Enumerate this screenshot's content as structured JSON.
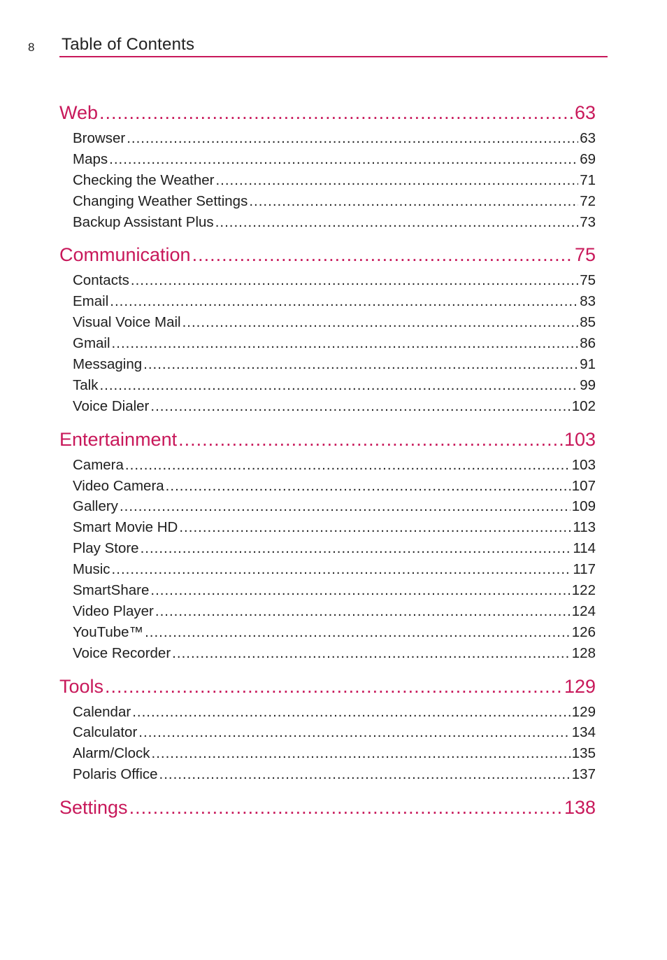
{
  "header": {
    "page_number": "8",
    "title": "Table of Contents"
  },
  "sections": [
    {
      "title": "Web",
      "page": "63",
      "entries": [
        {
          "label": "Browser",
          "page": "63"
        },
        {
          "label": "Maps",
          "page": "69"
        },
        {
          "label": "Checking the Weather",
          "page": "71"
        },
        {
          "label": "Changing Weather Settings",
          "page": "72"
        },
        {
          "label": "Backup Assistant Plus",
          "page": "73"
        }
      ]
    },
    {
      "title": "Communication",
      "page": "75",
      "entries": [
        {
          "label": "Contacts",
          "page": "75"
        },
        {
          "label": "Email",
          "page": "83"
        },
        {
          "label": "Visual Voice Mail",
          "page": "85"
        },
        {
          "label": "Gmail",
          "page": "86"
        },
        {
          "label": "Messaging",
          "page": "91"
        },
        {
          "label": "Talk",
          "page": "99"
        },
        {
          "label": "Voice Dialer",
          "page": "102"
        }
      ]
    },
    {
      "title": "Entertainment",
      "page": "103",
      "entries": [
        {
          "label": "Camera",
          "page": "103"
        },
        {
          "label": "Video Camera",
          "page": "107"
        },
        {
          "label": "Gallery",
          "page": "109"
        },
        {
          "label": "Smart Movie HD",
          "page": "113"
        },
        {
          "label": "Play Store",
          "page": "114"
        },
        {
          "label": "Music",
          "page": "117"
        },
        {
          "label": "SmartShare",
          "page": "122"
        },
        {
          "label": "Video Player",
          "page": "124"
        },
        {
          "label": "YouTube™",
          "page": "126"
        },
        {
          "label": "Voice Recorder",
          "page": "128"
        }
      ]
    },
    {
      "title": "Tools",
      "page": "129",
      "entries": [
        {
          "label": "Calendar",
          "page": "129"
        },
        {
          "label": "Calculator",
          "page": "134"
        },
        {
          "label": "Alarm/Clock",
          "page": "135"
        },
        {
          "label": "Polaris Office",
          "page": "137"
        }
      ]
    },
    {
      "title": "Settings",
      "page": "138",
      "entries": []
    }
  ]
}
